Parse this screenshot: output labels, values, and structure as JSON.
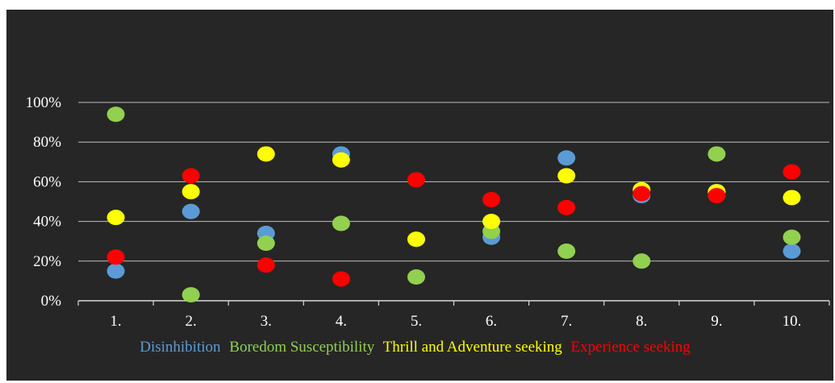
{
  "chart_data": {
    "type": "scatter",
    "title": "",
    "xlabel": "",
    "ylabel": "",
    "categories": [
      "1.",
      "2.",
      "3.",
      "4.",
      "5.",
      "6.",
      "7.",
      "8.",
      "9.",
      "10."
    ],
    "ylim": [
      0,
      100
    ],
    "y_ticks": [
      "0%",
      "20%",
      "40%",
      "60%",
      "80%",
      "100%"
    ],
    "grid": true,
    "legend_position": "bottom",
    "background": "#262626",
    "series": [
      {
        "name": "Disinhibition",
        "color": "#5b9bd5",
        "values": [
          15,
          45,
          34,
          74,
          31,
          32,
          72,
          53,
          55,
          25
        ]
      },
      {
        "name": "Boredom Susceptibility",
        "color": "#92d050",
        "values": [
          94,
          3,
          29,
          39,
          12,
          35,
          25,
          20,
          74,
          32
        ]
      },
      {
        "name": "Thrill and Adventure seeking",
        "color": "#ffff00",
        "values": [
          42,
          55,
          74,
          71,
          31,
          40,
          63,
          56,
          55,
          52
        ]
      },
      {
        "name": "Experience seeking",
        "color": "#ff0000",
        "values": [
          22,
          63,
          18,
          11,
          61,
          51,
          47,
          54,
          53,
          65
        ]
      }
    ]
  }
}
